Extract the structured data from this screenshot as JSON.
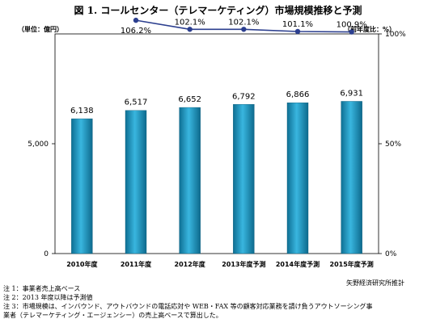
{
  "title": "図 1. コールセンター（テレマーケティング）市場規模推移と予測",
  "units": {
    "left": "（単位：億円）",
    "right": "（前年度比：%）"
  },
  "chart_data": {
    "type": "bar",
    "categories": [
      "2010年度",
      "2011年度",
      "2012年度",
      "2013年度予測",
      "2014年度予測",
      "2015年度予測"
    ],
    "series": [
      {
        "values": [
          6138,
          6517,
          6652,
          6792,
          6866,
          6931
        ],
        "axis": "left",
        "kind": "bar"
      },
      {
        "values": [
          null,
          106.2,
          102.1,
          102.1,
          101.1,
          100.9
        ],
        "axis": "right",
        "kind": "line"
      }
    ],
    "bar_labels": [
      "6,138",
      "6,517",
      "6,652",
      "6,792",
      "6,866",
      "6,931"
    ],
    "line_labels": [
      "",
      "106.2%",
      "102.1%",
      "102.1%",
      "101.1%",
      "100.9%"
    ],
    "left_axis": {
      "ylim": [
        0,
        10000
      ],
      "ticks": [
        0,
        5000
      ],
      "tick_labels": [
        "0",
        "5,000"
      ]
    },
    "right_axis": {
      "ylim": [
        0,
        100
      ],
      "ticks": [
        0,
        50,
        100
      ],
      "tick_labels": [
        "0%",
        "50%",
        "100%"
      ]
    },
    "bar_color": "#1f9bc6",
    "line_color": "#2c3f8f",
    "grid": false
  },
  "source": "矢野経済研究所推計",
  "notes": [
    "注 1：事業者売上高ベース",
    "注 2：2013 年度以降は予測値",
    "注 3：市場規模は、インバウンド、アウトバウンドの電話応対や WEB・FAX 等の顧客対応業務を請け負うアウトソーシング事",
    "業者（テレマーケティング・エージェンシー）の売上高ベースで算出した。"
  ]
}
